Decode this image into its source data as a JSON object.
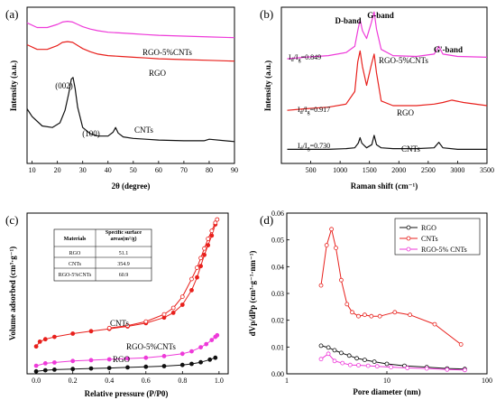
{
  "figure": {
    "panels": [
      "(a)",
      "(b)",
      "(c)",
      "(d)"
    ]
  },
  "chart_data": [
    {
      "type": "line",
      "panel_label": "(a)",
      "xlabel": "2θ (degree)",
      "ylabel": "Intensity (a.u.)",
      "xlim": [
        8,
        90
      ],
      "ylim": [
        0,
        10
      ],
      "xticks": [
        10,
        20,
        30,
        40,
        50,
        60,
        70,
        80,
        90
      ],
      "series": [
        {
          "name": "RGO-5%CNTs",
          "color": "#ee3ad9",
          "x": [
            8,
            12,
            16,
            20,
            22,
            24,
            26,
            28,
            30,
            33,
            36,
            40,
            45,
            50,
            55,
            60,
            70,
            80,
            90
          ],
          "y": [
            9.0,
            8.7,
            8.7,
            8.9,
            9.05,
            9.1,
            9.05,
            8.9,
            8.75,
            8.6,
            8.5,
            8.4,
            8.35,
            8.3,
            8.25,
            8.2,
            8.15,
            8.1,
            8.05
          ]
        },
        {
          "name": "RGO",
          "color": "#e8201c",
          "x": [
            8,
            12,
            16,
            20,
            22,
            24,
            26,
            28,
            30,
            33,
            36,
            40,
            45,
            50,
            55,
            60,
            70,
            80,
            90
          ],
          "y": [
            7.6,
            7.3,
            7.3,
            7.55,
            7.75,
            7.8,
            7.75,
            7.55,
            7.35,
            7.15,
            7.0,
            6.9,
            6.85,
            6.8,
            6.75,
            6.7,
            6.65,
            6.6,
            6.55
          ]
        },
        {
          "name": "CNTs",
          "color": "#111111",
          "x": [
            8,
            10,
            14,
            18,
            21,
            23,
            24.5,
            25.5,
            26.2,
            27,
            28,
            30,
            33,
            36,
            40,
            42,
            43,
            44,
            46,
            50,
            55,
            60,
            70,
            78,
            80,
            90
          ],
          "y": [
            3.5,
            3.0,
            2.4,
            2.3,
            2.6,
            3.4,
            4.5,
            5.4,
            5.5,
            4.8,
            3.6,
            2.3,
            1.9,
            1.75,
            1.75,
            2.0,
            2.3,
            1.95,
            1.7,
            1.6,
            1.55,
            1.5,
            1.45,
            1.45,
            1.55,
            1.4
          ]
        }
      ],
      "annotations": [
        {
          "text": "(002)",
          "x": 26,
          "y": 5.9
        },
        {
          "text": "(100)",
          "x": 43,
          "y": 2.7
        }
      ]
    },
    {
      "type": "line",
      "panel_label": "(b)",
      "xlabel": "Raman shift (cm⁻¹)",
      "ylabel": "Intensity (a.u.)",
      "xlim": [
        0,
        3500
      ],
      "ylim": [
        0,
        10
      ],
      "xticks": [
        500,
        1000,
        1500,
        2000,
        2500,
        3000,
        3500
      ],
      "band_labels": [
        "D-band",
        "G-band",
        "G'-band"
      ],
      "series": [
        {
          "name": "RGO-5%CNTs",
          "color": "#ee3ad9",
          "ratio": "0.849",
          "x": [
            100,
            400,
            800,
            1100,
            1250,
            1300,
            1340,
            1380,
            1450,
            1530,
            1580,
            1620,
            1700,
            1900,
            2300,
            2600,
            2680,
            2750,
            3000,
            3500
          ],
          "y": [
            6.7,
            6.8,
            6.9,
            7.1,
            7.5,
            8.5,
            9.2,
            8.5,
            8.0,
            9.0,
            9.7,
            8.6,
            7.3,
            6.9,
            6.85,
            7.0,
            7.5,
            7.0,
            6.85,
            6.8
          ]
        },
        {
          "name": "RGO",
          "color": "#e8201c",
          "ratio": "0.917",
          "x": [
            100,
            400,
            800,
            1100,
            1250,
            1300,
            1340,
            1380,
            1450,
            1530,
            1580,
            1620,
            1700,
            1900,
            2300,
            2600,
            2750,
            2900,
            3100,
            3500
          ],
          "y": [
            3.4,
            3.5,
            3.6,
            3.8,
            4.6,
            6.5,
            7.2,
            6.2,
            5.0,
            6.3,
            7.0,
            5.8,
            4.0,
            3.7,
            3.7,
            3.8,
            3.9,
            4.05,
            3.9,
            3.7
          ]
        },
        {
          "name": "CNTs",
          "color": "#111111",
          "ratio": "0.730",
          "x": [
            100,
            400,
            800,
            1100,
            1250,
            1310,
            1340,
            1370,
            1450,
            1540,
            1580,
            1620,
            1700,
            1900,
            2300,
            2600,
            2680,
            2750,
            3000,
            3500
          ],
          "y": [
            0.9,
            0.9,
            0.9,
            0.95,
            1.0,
            1.3,
            1.65,
            1.3,
            1.0,
            1.2,
            1.8,
            1.2,
            1.0,
            0.95,
            0.95,
            1.0,
            1.35,
            1.0,
            0.9,
            0.9
          ]
        }
      ]
    },
    {
      "type": "scatter",
      "panel_label": "(c)",
      "xlabel": "Relative pressure (P/P0)",
      "ylabel": "Volume adsorbed (cm³·g⁻¹)",
      "xlim": [
        -0.05,
        1.05
      ],
      "ylim": [
        0,
        10
      ],
      "xticks": [
        0.0,
        0.2,
        0.4,
        0.6,
        0.8,
        1.0
      ],
      "table": {
        "headers": [
          "Materials",
          "Specific surface areas(m²/g)"
        ],
        "rows": [
          [
            "RGO",
            "51.1"
          ],
          [
            "CNTs",
            "354.9"
          ],
          [
            "RGO-5%CNTs",
            "60.9"
          ]
        ]
      },
      "series": [
        {
          "name": "CNTs",
          "color": "#e8201c",
          "x": [
            0.0,
            0.02,
            0.05,
            0.1,
            0.2,
            0.3,
            0.4,
            0.5,
            0.6,
            0.7,
            0.75,
            0.8,
            0.85,
            0.88,
            0.9,
            0.92,
            0.94,
            0.96,
            0.98,
            0.99
          ],
          "y": [
            1.7,
            2.0,
            2.15,
            2.3,
            2.5,
            2.65,
            2.8,
            2.95,
            3.15,
            3.5,
            3.8,
            4.3,
            5.2,
            6.0,
            6.7,
            7.4,
            8.0,
            8.6,
            9.3,
            9.6
          ],
          "desorption_y": [
            null,
            null,
            null,
            null,
            null,
            null,
            2.85,
            3.0,
            3.25,
            3.7,
            4.1,
            4.8,
            5.9,
            6.6,
            7.2,
            7.8,
            8.4,
            8.9,
            9.4,
            9.6
          ]
        },
        {
          "name": "RGO-5%CNTs",
          "color": "#ee3ad9",
          "x": [
            0.0,
            0.05,
            0.1,
            0.2,
            0.3,
            0.4,
            0.5,
            0.6,
            0.7,
            0.8,
            0.85,
            0.9,
            0.93,
            0.96,
            0.98,
            0.99
          ],
          "y": [
            0.5,
            0.65,
            0.7,
            0.8,
            0.85,
            0.9,
            0.95,
            1.0,
            1.1,
            1.25,
            1.4,
            1.65,
            1.85,
            2.1,
            2.3,
            2.4
          ]
        },
        {
          "name": "RGO",
          "color": "#111111",
          "x": [
            0.0,
            0.05,
            0.1,
            0.2,
            0.3,
            0.4,
            0.5,
            0.6,
            0.7,
            0.8,
            0.85,
            0.9,
            0.95,
            0.98
          ],
          "y": [
            0.15,
            0.22,
            0.26,
            0.3,
            0.33,
            0.36,
            0.4,
            0.44,
            0.48,
            0.55,
            0.62,
            0.72,
            0.88,
            1.0
          ]
        }
      ],
      "labels": [
        {
          "text": "CNTs",
          "x": 0.53,
          "y": 3.45
        },
        {
          "text": "RGO-5%CNTs",
          "x": 0.65,
          "y": 1.35
        },
        {
          "text": "RGO",
          "x": 0.48,
          "y": 0.6
        }
      ]
    },
    {
      "type": "line",
      "panel_label": "(d)",
      "xlabel": "Pore diameter (nm)",
      "ylabel": "dVp/dPp (cm³·g⁻¹·nm⁻¹)",
      "xscale": "log",
      "xlim": [
        1,
        100
      ],
      "ylim": [
        0,
        0.06
      ],
      "xticks": [
        1,
        10,
        100
      ],
      "yticks": [
        0.0,
        0.01,
        0.02,
        0.03,
        0.04,
        0.05,
        0.06
      ],
      "legend_position": "top-right",
      "series": [
        {
          "name": "RGO",
          "color": "#111111",
          "x": [
            2.2,
            2.6,
            3.0,
            3.5,
            4.2,
            5.0,
            6.0,
            7.5,
            10,
            15,
            25,
            40,
            60
          ],
          "y": [
            0.0105,
            0.0098,
            0.0088,
            0.0078,
            0.0068,
            0.0058,
            0.0052,
            0.0045,
            0.0037,
            0.003,
            0.0025,
            0.002,
            0.0018
          ]
        },
        {
          "name": "CNTs",
          "color": "#e8201c",
          "x": [
            2.2,
            2.5,
            2.8,
            3.1,
            3.5,
            4.0,
            4.5,
            5.2,
            6.0,
            7.0,
            8.5,
            12,
            17,
            30,
            55
          ],
          "y": [
            0.033,
            0.048,
            0.054,
            0.047,
            0.035,
            0.026,
            0.023,
            0.0215,
            0.022,
            0.0215,
            0.0215,
            0.023,
            0.022,
            0.0185,
            0.011
          ]
        },
        {
          "name": "RGO-5% CNTs",
          "color": "#ee3ad9",
          "x": [
            2.2,
            2.6,
            3.0,
            3.6,
            4.3,
            5.2,
            6.5,
            8,
            11,
            16,
            25,
            40,
            60
          ],
          "y": [
            0.0055,
            0.0075,
            0.0048,
            0.004,
            0.0033,
            0.0032,
            0.003,
            0.0028,
            0.0025,
            0.0022,
            0.002,
            0.0016,
            0.0014
          ]
        }
      ]
    }
  ]
}
